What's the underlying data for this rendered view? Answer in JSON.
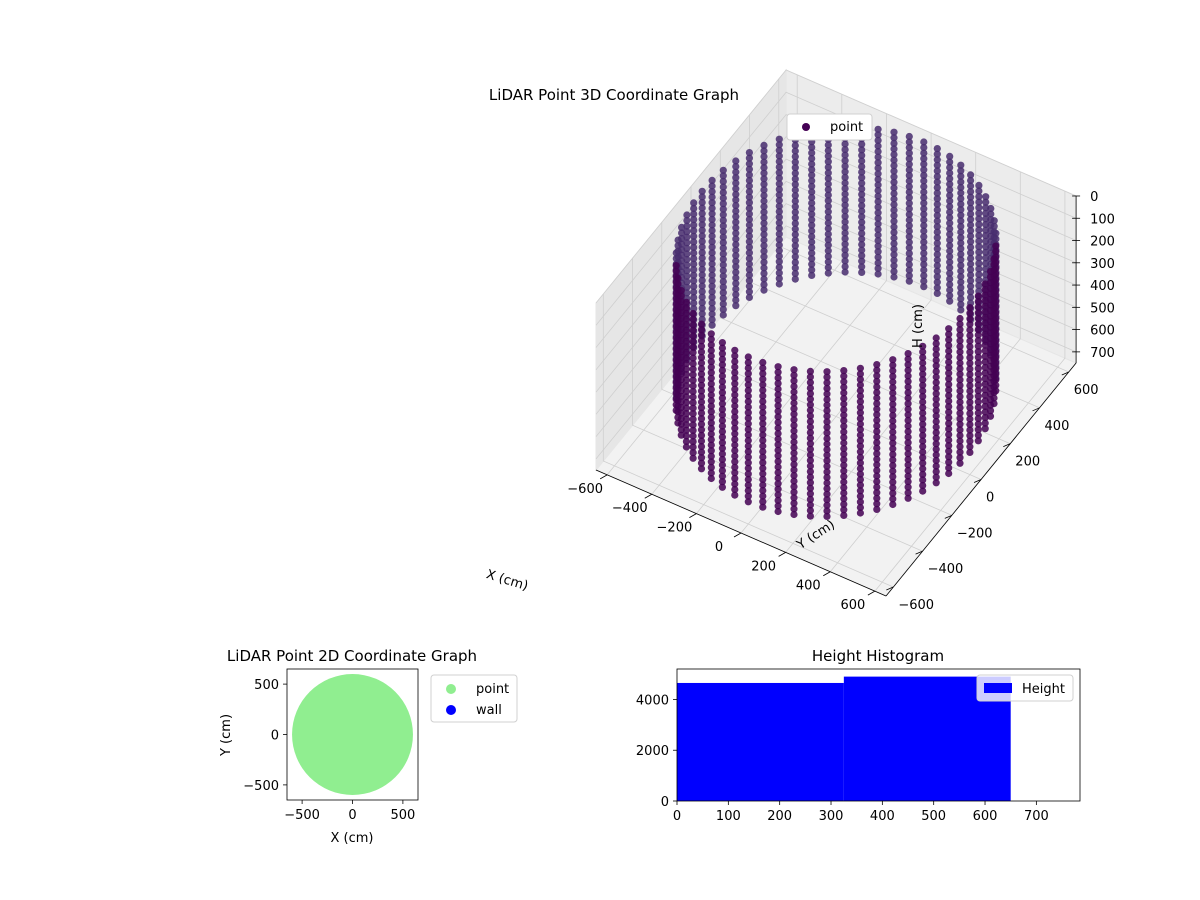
{
  "chart_data": [
    {
      "type": "scatter",
      "projection": "3d",
      "title": "LiDAR Point 3D Coordinate Graph",
      "xlabel": "X (cm)",
      "ylabel": "Y (cm)",
      "zlabel": "H (cm)",
      "xlim": [
        -650,
        650
      ],
      "ylim": [
        -650,
        650
      ],
      "zlim": [
        0,
        750
      ],
      "z_inverted": true,
      "xticks": [
        -600,
        -400,
        -200,
        0,
        200,
        400,
        600
      ],
      "yticks": [
        -600,
        -400,
        -200,
        0,
        200,
        400,
        600
      ],
      "zticks": [
        0,
        100,
        200,
        300,
        400,
        500,
        600,
        700
      ],
      "grid": true,
      "legend": {
        "placement": "upper-right",
        "entries": [
          {
            "label": "point",
            "color": "#440154"
          }
        ]
      },
      "series": [
        {
          "name": "point",
          "color": "#440154",
          "shape": "cylindrical-wall",
          "radius": 600,
          "h_min": 0,
          "h_max": 650,
          "angle_step_deg": 6,
          "h_step": 25
        }
      ]
    },
    {
      "type": "scatter",
      "title": "LiDAR Point 2D Coordinate Graph",
      "xlabel": "X (cm)",
      "ylabel": "Y (cm)",
      "xlim": [
        -650,
        650
      ],
      "ylim": [
        -650,
        650
      ],
      "xticks": [
        -500,
        0,
        500
      ],
      "yticks": [
        -500,
        0,
        500
      ],
      "legend": {
        "placement": "outside-right",
        "entries": [
          {
            "label": "point",
            "color": "#90ee90"
          },
          {
            "label": "wall",
            "color": "#0000ff"
          }
        ]
      },
      "series": [
        {
          "name": "point",
          "color": "#90ee90",
          "shape": "filled-disk",
          "radius": 600
        },
        {
          "name": "wall",
          "color": "#0000ff",
          "values": []
        }
      ]
    },
    {
      "type": "bar",
      "subtype": "histogram",
      "title": "Height Histogram",
      "xlim": [
        0,
        785
      ],
      "ylim": [
        0,
        5200
      ],
      "xticks": [
        0,
        100,
        200,
        300,
        400,
        500,
        600,
        700
      ],
      "yticks": [
        0,
        2000,
        4000
      ],
      "legend": {
        "placement": "upper-right",
        "entries": [
          {
            "label": "Height",
            "color": "#0000ff"
          }
        ]
      },
      "series": [
        {
          "name": "Height",
          "color": "#0000ff",
          "bins": [
            {
              "from": 0,
              "to": 325,
              "count": 4650
            },
            {
              "from": 325,
              "to": 650,
              "count": 4900
            }
          ]
        }
      ]
    }
  ]
}
